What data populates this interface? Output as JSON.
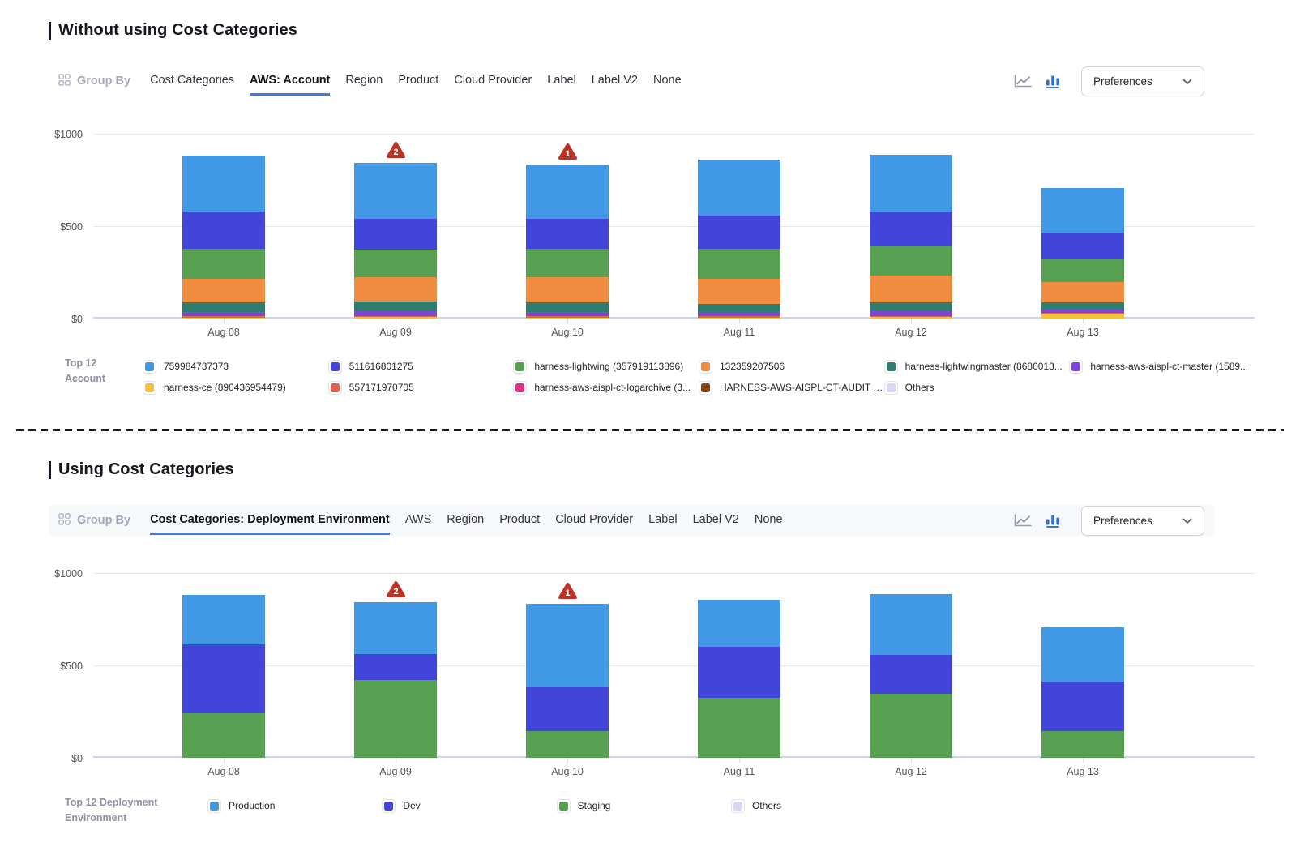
{
  "theme": {
    "active_tab_underline": "#3B7BE1",
    "anomaly_color": "#BE3224",
    "axis_line": "#CBD4EE",
    "gridline": "#E8E8EC",
    "chart_icon_active": "#2D6FE3"
  },
  "sections": [
    {
      "title": "Without using Cost Categories",
      "toolbar": {
        "group_by_label": "Group By",
        "tabs": [
          "Cost Categories",
          "AWS: Account",
          "Region",
          "Product",
          "Cloud Provider",
          "Label",
          "Label V2",
          "None"
        ],
        "active_tab": "AWS: Account",
        "preferences_label": "Preferences"
      },
      "chart_data": {
        "type": "bar",
        "stacked": true,
        "categories": [
          "Aug 08",
          "Aug 09",
          "Aug 10",
          "Aug 11",
          "Aug 12",
          "Aug 13"
        ],
        "series": [
          {
            "name": "harness-ce (890436954479)",
            "color": "#F3C13E",
            "values": [
              6,
              7,
              6,
              6,
              8,
              26
            ]
          },
          {
            "name": "557171970705",
            "color": "#E2604F",
            "values": [
              8,
              8,
              8,
              6,
              7,
              4
            ]
          },
          {
            "name": "harness-aws-aispl-ct-master (1589...",
            "color": "#7C47D4",
            "values": [
              22,
              24,
              23,
              18,
              28,
              22
            ]
          },
          {
            "name": "harness-lightwingmaster (8680013...",
            "color": "#2F7D6E",
            "values": [
              50,
              52,
              50,
              50,
              45,
              36
            ]
          },
          {
            "name": "132359207506",
            "color": "#EF8C40",
            "values": [
              131,
              134,
              137,
              136,
              143,
              108
            ]
          },
          {
            "name": "harness-lightwing (357919113896)",
            "color": "#57A052",
            "values": [
              160,
              147,
              152,
              160,
              159,
              123
            ]
          },
          {
            "name": "511616801275",
            "color": "#4145D9",
            "values": [
              203,
              168,
              165,
              183,
              185,
              147
            ]
          },
          {
            "name": "759984737373",
            "color": "#4198E5",
            "values": [
              300,
              300,
              294,
              299,
              310,
              239
            ]
          }
        ],
        "stack_order": "bottom-to-top",
        "yticks": [
          {
            "label": "$0",
            "value": 0
          },
          {
            "label": "$500",
            "value": 500
          },
          {
            "label": "$1000",
            "value": 1000
          }
        ],
        "ylim": [
          0,
          1000
        ],
        "grid": true,
        "legend_position": "bottom",
        "anomalies": [
          {
            "category": "Aug 09",
            "count": 2
          },
          {
            "category": "Aug 10",
            "count": 1
          }
        ]
      },
      "legend": {
        "title": "Top 12 Account",
        "rows": 2,
        "items": [
          {
            "label": "759984737373",
            "color": "#4198E5"
          },
          {
            "label": "harness-ce (890436954479)",
            "color": "#F3C13E"
          },
          {
            "label": "511616801275",
            "color": "#4145D9"
          },
          {
            "label": "557171970705",
            "color": "#E2604F"
          },
          {
            "label": "harness-lightwing (357919113896)",
            "color": "#57A052"
          },
          {
            "label": "harness-aws-aispl-ct-logarchive (3...",
            "color": "#E03189"
          },
          {
            "label": "132359207506",
            "color": "#EF8C40"
          },
          {
            "label": "HARNESS-AWS-AISPL-CT-AUDIT (...",
            "color": "#8A4512"
          },
          {
            "label": "harness-lightwingmaster (8680013...",
            "color": "#2F7D6E"
          },
          {
            "label": "Others",
            "color": "#D9D7F8"
          },
          {
            "label": "harness-aws-aispl-ct-master (1589...",
            "color": "#7C47D4"
          }
        ]
      }
    },
    {
      "title": "Using Cost Categories",
      "toolbar": {
        "group_by_label": "Group By",
        "tabs": [
          "Cost Categories: Deployment Environment",
          "AWS",
          "Region",
          "Product",
          "Cloud Provider",
          "Label",
          "Label V2",
          "None"
        ],
        "active_tab": "Cost Categories: Deployment Environment",
        "preferences_label": "Preferences"
      },
      "chart_data": {
        "type": "bar",
        "stacked": true,
        "categories": [
          "Aug 08",
          "Aug 09",
          "Aug 10",
          "Aug 11",
          "Aug 12",
          "Aug 13"
        ],
        "series": [
          {
            "name": "Staging",
            "color": "#57A052",
            "values": [
              240,
              420,
              144,
              323,
              346,
              147
            ]
          },
          {
            "name": "Dev",
            "color": "#4145D9",
            "values": [
              374,
              143,
              236,
              280,
              211,
              267
            ]
          },
          {
            "name": "Production",
            "color": "#4198E5",
            "values": [
              266,
              277,
              455,
              255,
              328,
              291
            ]
          }
        ],
        "stack_order": "bottom-to-top",
        "yticks": [
          {
            "label": "$0",
            "value": 0
          },
          {
            "label": "$500",
            "value": 500
          },
          {
            "label": "$1000",
            "value": 1000
          }
        ],
        "ylim": [
          0,
          1000
        ],
        "grid": true,
        "legend_position": "bottom",
        "anomalies": [
          {
            "category": "Aug 09",
            "count": 2
          },
          {
            "category": "Aug 10",
            "count": 1
          }
        ]
      },
      "legend": {
        "title": "Top 12 Deployment Environment",
        "rows": 1,
        "items": [
          {
            "label": "Production",
            "color": "#4198E5"
          },
          {
            "label": "Dev",
            "color": "#4145D9"
          },
          {
            "label": "Staging",
            "color": "#57A052"
          },
          {
            "label": "Others",
            "color": "#D9D7F8"
          }
        ]
      }
    }
  ]
}
